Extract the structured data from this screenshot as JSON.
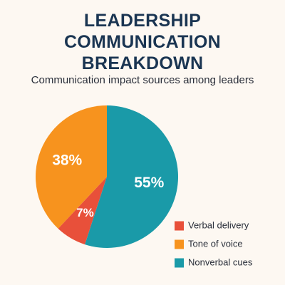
{
  "chart_data": {
    "type": "pie",
    "title": "LEADERSHIP COMMUNICATION BREAKDOWN",
    "subtitle": "Communication impact sources among leaders",
    "categories": [
      "Verbal delivery",
      "Tone of voice",
      "Nonverbal cues"
    ],
    "values": [
      7,
      38,
      55
    ],
    "value_labels": [
      "7%",
      "38%",
      "55%"
    ],
    "colors": [
      "#e8503a",
      "#f7931e",
      "#1a9aa8"
    ],
    "legend": "lower right"
  }
}
